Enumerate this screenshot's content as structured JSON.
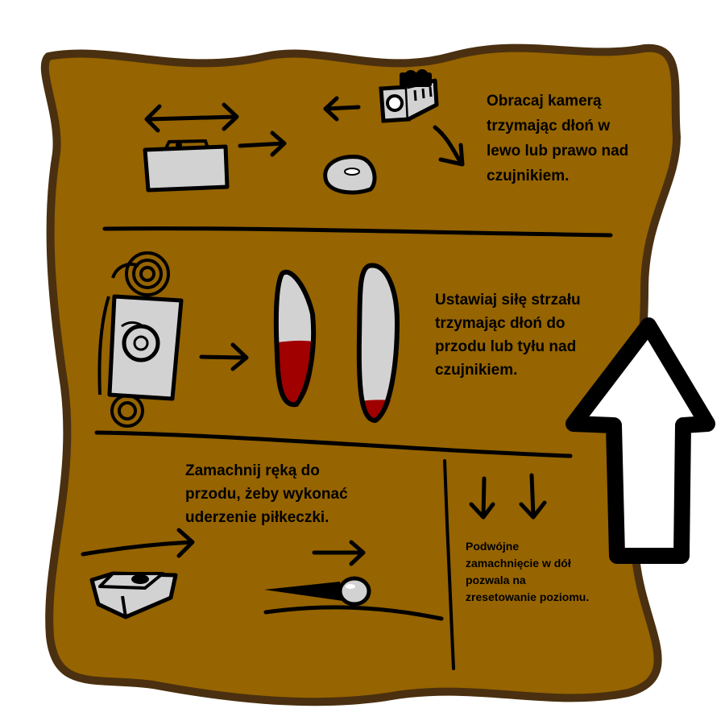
{
  "colors": {
    "board": "#966400",
    "outline": "#000000",
    "device_gray": "#d2d2d2",
    "gauge_red": "#a00000",
    "arrow_fill": "#ffffff",
    "background": "#ffffff"
  },
  "instructions": {
    "camera": {
      "lines": [
        "Obracaj kamerą",
        "trzymając dłoń w",
        "lewo lub prawo nad",
        "czujnikiem."
      ]
    },
    "power": {
      "lines": [
        "Ustawiaj siłę strzału",
        "trzymając dłoń do",
        "przodu lub tyłu nad",
        "czujnikiem."
      ]
    },
    "swing": {
      "lines": [
        "Zamachnij ręką do",
        "przodu, żeby wykonać",
        "uderzenie piłkeczki."
      ]
    },
    "reset": {
      "lines": [
        "Podwójne",
        "zamachnięcie w dół",
        "pozwala na",
        "zresetowanie poziomu."
      ]
    }
  },
  "power_gauges": [
    {
      "level": 0.45
    },
    {
      "level": 0.12
    }
  ],
  "icons": [
    "leap-sensor-icon",
    "hand-icon",
    "camera-icon",
    "golf-ball-icon",
    "golf-club-icon",
    "up-arrow-icon",
    "swipe-down-arrow-icon"
  ]
}
